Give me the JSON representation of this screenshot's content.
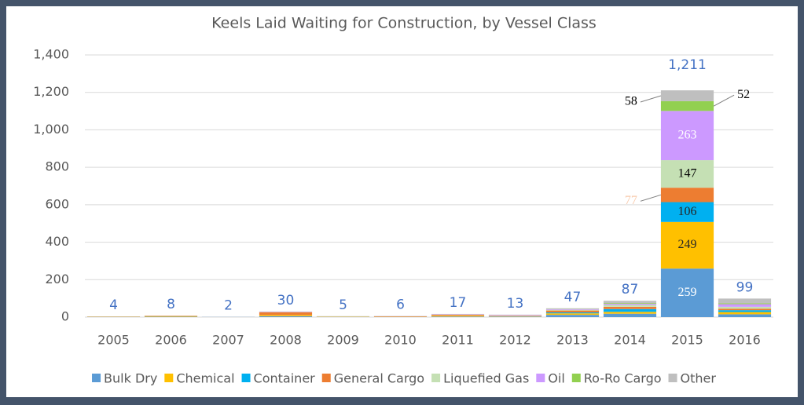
{
  "chart_data": {
    "type": "stacked_bar",
    "title": "Keels Laid Waiting for Construction, by Vessel Class",
    "categories": [
      "2005",
      "2006",
      "2007",
      "2008",
      "2009",
      "2010",
      "2011",
      "2012",
      "2013",
      "2014",
      "2015",
      "2016"
    ],
    "series": [
      {
        "name": "Bulk Dry",
        "color": "#5b9bd5",
        "label_color": "#ffffff",
        "values": [
          1,
          2,
          1,
          5,
          1,
          1,
          3,
          3,
          12,
          18,
          259,
          15
        ],
        "value_labels": [
          null,
          null,
          null,
          null,
          null,
          null,
          null,
          null,
          null,
          null,
          "259",
          null
        ]
      },
      {
        "name": "Chemical",
        "color": "#ffc000",
        "label_color": "#262626",
        "values": [
          1,
          3,
          0,
          6,
          1,
          1,
          4,
          2,
          8,
          10,
          249,
          12
        ],
        "value_labels": [
          null,
          null,
          null,
          null,
          null,
          null,
          null,
          null,
          null,
          null,
          "249",
          null
        ]
      },
      {
        "name": "Container",
        "color": "#00b0f0",
        "label_color": "#262626",
        "values": [
          0,
          0,
          0,
          0,
          0,
          0,
          0,
          0,
          5,
          15,
          106,
          10
        ],
        "value_labels": [
          null,
          null,
          null,
          null,
          null,
          null,
          null,
          null,
          null,
          null,
          "106",
          null
        ]
      },
      {
        "name": "General Cargo",
        "color": "#ed7d31",
        "label_color": "#f8cbad",
        "values": [
          1,
          2,
          0,
          15,
          1,
          2,
          5,
          2,
          10,
          12,
          77,
          8
        ],
        "value_labels": [
          null,
          null,
          null,
          null,
          null,
          null,
          null,
          null,
          null,
          null,
          "77",
          null
        ]
      },
      {
        "name": "Liquefied Gas",
        "color": "#c5e0b4",
        "label_color": "#000000",
        "values": [
          0,
          0,
          0,
          0,
          1,
          0,
          1,
          1,
          4,
          10,
          147,
          10
        ],
        "value_labels": [
          null,
          null,
          null,
          null,
          null,
          null,
          null,
          null,
          null,
          null,
          "147",
          null
        ]
      },
      {
        "name": "Oil",
        "color": "#cc99ff",
        "label_color": "#ffffff",
        "values": [
          0,
          0,
          0,
          2,
          0,
          1,
          2,
          3,
          4,
          6,
          263,
          14
        ],
        "value_labels": [
          null,
          null,
          null,
          null,
          null,
          null,
          null,
          null,
          null,
          null,
          "263",
          null
        ]
      },
      {
        "name": "Ro-Ro Cargo",
        "color": "#92d050",
        "label_color": "#000000",
        "values": [
          0,
          0,
          0,
          0,
          0,
          0,
          0,
          0,
          1,
          4,
          52,
          5
        ],
        "value_labels": [
          null,
          null,
          null,
          null,
          null,
          null,
          null,
          null,
          null,
          null,
          "52",
          null
        ]
      },
      {
        "name": "Other",
        "color": "#bfbfbf",
        "label_color": "#000000",
        "values": [
          1,
          1,
          1,
          2,
          1,
          1,
          2,
          2,
          3,
          12,
          58,
          25
        ],
        "value_labels": [
          null,
          null,
          null,
          null,
          null,
          null,
          null,
          null,
          null,
          null,
          "58",
          null
        ]
      }
    ],
    "totals": [
      4,
      8,
      2,
      30,
      5,
      6,
      17,
      13,
      47,
      87,
      1211,
      99
    ],
    "total_labels": [
      "4",
      "8",
      "2",
      "30",
      "5",
      "6",
      "17",
      "13",
      "47",
      "87",
      "1,211",
      "99"
    ],
    "total_color": "#4472c4",
    "ylim": [
      0,
      1400
    ],
    "yticks": [
      0,
      {
        "value": 200,
        "label": "200"
      },
      {
        "value": 400,
        "label": "400"
      },
      {
        "value": 600,
        "label": "600"
      },
      {
        "value": 800,
        "label": "800"
      },
      {
        "value": 1000,
        "label": "1,000"
      },
      {
        "value": 1200,
        "label": "1,200"
      },
      {
        "value": 1400,
        "label": "1,400"
      }
    ],
    "grid": true,
    "legend": "bottom"
  }
}
